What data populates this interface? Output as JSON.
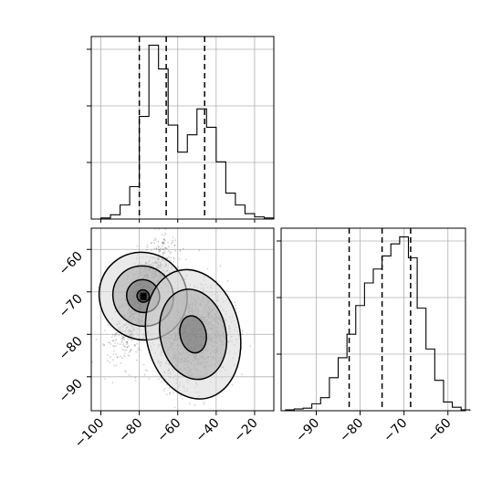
{
  "chart_data": {
    "type": "corner",
    "grid": true,
    "panels": [
      {
        "id": "hist_x",
        "type": "histogram",
        "xlim": [
          -105,
          -10
        ],
        "bin_width": 5,
        "bin_edges_start": -100,
        "counts": [
          1,
          4,
          13,
          30,
          95,
          161,
          139,
          87,
          62,
          78,
          102,
          85,
          53,
          24,
          13,
          5,
          2,
          1
        ],
        "quantiles": [
          -80,
          -66,
          -46
        ]
      },
      {
        "id": "hist_y",
        "type": "histogram",
        "xlim": [
          -98,
          -56
        ],
        "xticks": [
          -90,
          -80,
          -70,
          -60
        ],
        "bin_width": 2,
        "bin_edges_start": -97,
        "counts": [
          1,
          2,
          3,
          8,
          15,
          38,
          61,
          88,
          121,
          147,
          163,
          178,
          192,
          200,
          176,
          118,
          71,
          35,
          10,
          4,
          1
        ],
        "quantiles": [
          -82.5,
          -75,
          -68.5
        ]
      },
      {
        "id": "scatter_xy",
        "type": "2d-density",
        "xlim": [
          -105,
          -10
        ],
        "ylim": [
          -98,
          -55
        ],
        "xticks": [
          -100,
          -80,
          -60,
          -40,
          -20
        ],
        "yticks": [
          -60,
          -70,
          -80,
          -90
        ],
        "modes": [
          {
            "x": -78,
            "y": -71,
            "sx": 7,
            "sy": 6,
            "rho": 0.72,
            "n": 1400
          },
          {
            "x": -52,
            "y": -80,
            "sx": 9,
            "sy": 5.5,
            "rho": 0.15,
            "n": 1600
          }
        ],
        "contours": [
          {
            "center": [
              -78,
              -71
            ],
            "levels": [
              [
                3.2,
                3.2,
                0.72
              ],
              [
                2.2,
                2.2,
                0.72
              ],
              [
                1.2,
                1.2,
                0.72
              ],
              [
                0.45,
                0.45,
                0.72
              ]
            ]
          },
          {
            "center": [
              -52,
              -80
            ],
            "levels": [
              [
                2.7,
                2.8,
                0.15
              ],
              [
                1.9,
                1.95,
                0.15
              ],
              [
                0.75,
                0.8,
                0.15
              ]
            ]
          }
        ]
      }
    ]
  }
}
